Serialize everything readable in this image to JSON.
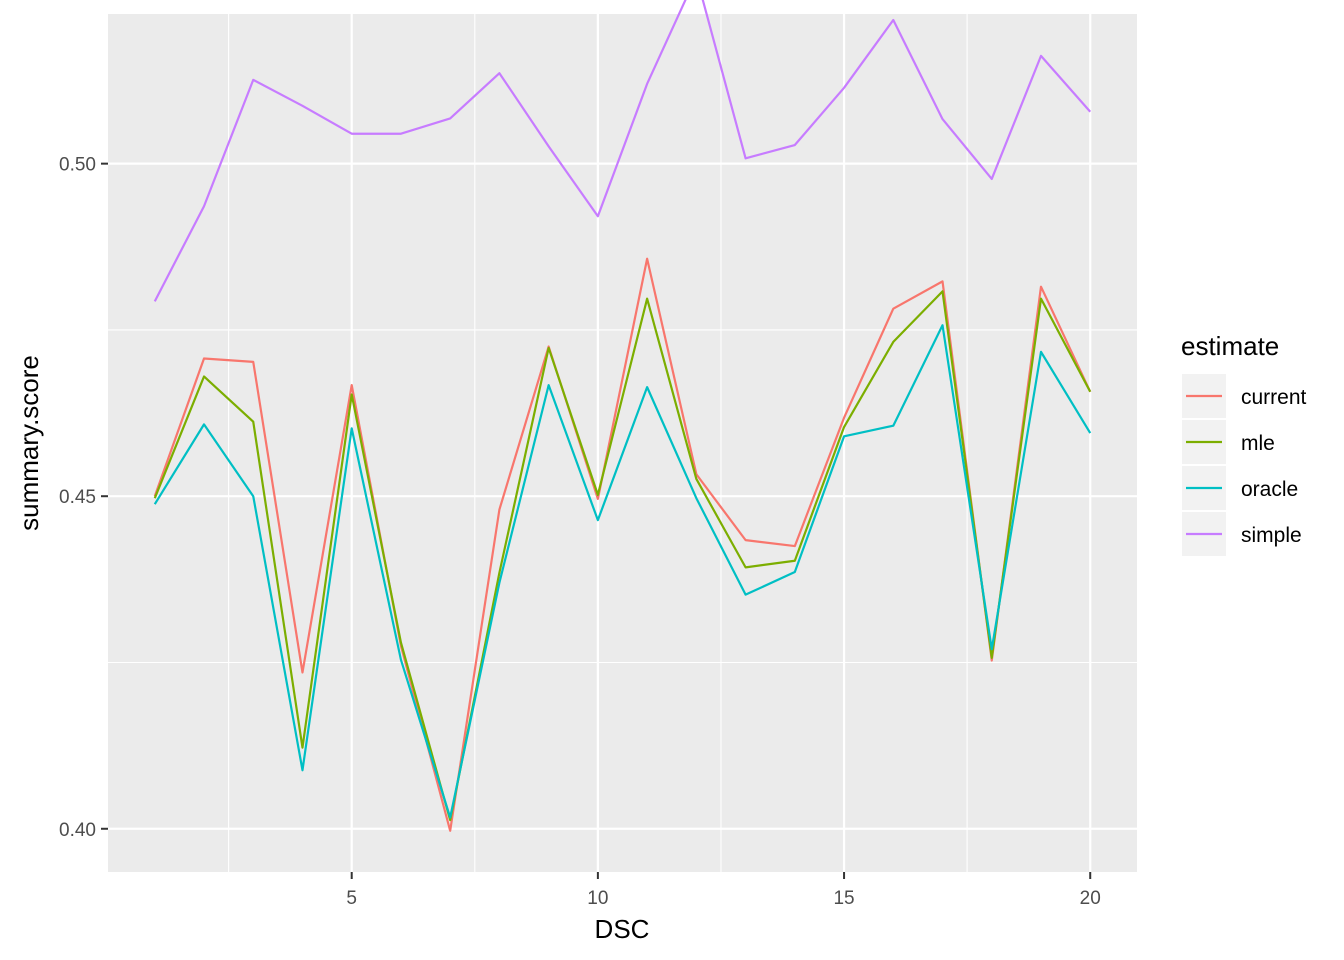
{
  "chart_data": {
    "type": "line",
    "xlabel": "DSC",
    "ylabel": "summary.score",
    "xlim": [
      0.05,
      20.95
    ],
    "ylim": [
      0.3935,
      0.5225
    ],
    "x_ticks": [
      5,
      10,
      15,
      20
    ],
    "x_tick_labels": [
      "5",
      "10",
      "15",
      "20"
    ],
    "y_ticks": [
      0.4,
      0.45,
      0.5
    ],
    "y_tick_labels": [
      "0.40",
      "0.45",
      "0.50"
    ],
    "x_minor_ticks": [
      2.5,
      7.5,
      12.5,
      17.5
    ],
    "y_minor_ticks": [
      0.425,
      0.475,
      0.525
    ],
    "grid": true,
    "legend": {
      "title": "estimate",
      "position": "right"
    },
    "x": [
      1,
      2,
      3,
      4,
      5,
      6,
      7,
      8,
      9,
      10,
      11,
      12,
      13,
      14,
      15,
      16,
      17,
      18,
      19,
      20
    ],
    "series": [
      {
        "name": "current",
        "color": "#F8766D",
        "values": [
          0.45,
          0.4707,
          0.4702,
          0.4235,
          0.4667,
          0.4275,
          0.3997,
          0.448,
          0.4725,
          0.4496,
          0.4857,
          0.4533,
          0.4434,
          0.4425,
          0.4618,
          0.4782,
          0.4823,
          0.4253,
          0.4815,
          0.4657
        ]
      },
      {
        "name": "mle",
        "color": "#7CAE00",
        "values": [
          0.4497,
          0.468,
          0.4612,
          0.4122,
          0.4653,
          0.428,
          0.4013,
          0.4385,
          0.4723,
          0.4502,
          0.4797,
          0.4526,
          0.4393,
          0.4403,
          0.4604,
          0.4732,
          0.4808,
          0.4257,
          0.4797,
          0.4657
        ]
      },
      {
        "name": "oracle",
        "color": "#00BFC4",
        "values": [
          0.4488,
          0.4608,
          0.45,
          0.4088,
          0.4602,
          0.4254,
          0.4017,
          0.437,
          0.4667,
          0.4464,
          0.4664,
          0.4497,
          0.4352,
          0.4386,
          0.459,
          0.4606,
          0.4757,
          0.427,
          0.4717,
          0.4595
        ]
      },
      {
        "name": "simple",
        "color": "#C77CFF",
        "values": [
          0.4793,
          0.4936,
          0.5126,
          0.5087,
          0.5045,
          0.5045,
          0.5068,
          0.5136,
          0.5026,
          0.4921,
          0.512,
          0.5282,
          0.5008,
          0.5028,
          0.5114,
          0.5216,
          0.5067,
          0.4977,
          0.5162,
          0.5078
        ]
      }
    ]
  }
}
